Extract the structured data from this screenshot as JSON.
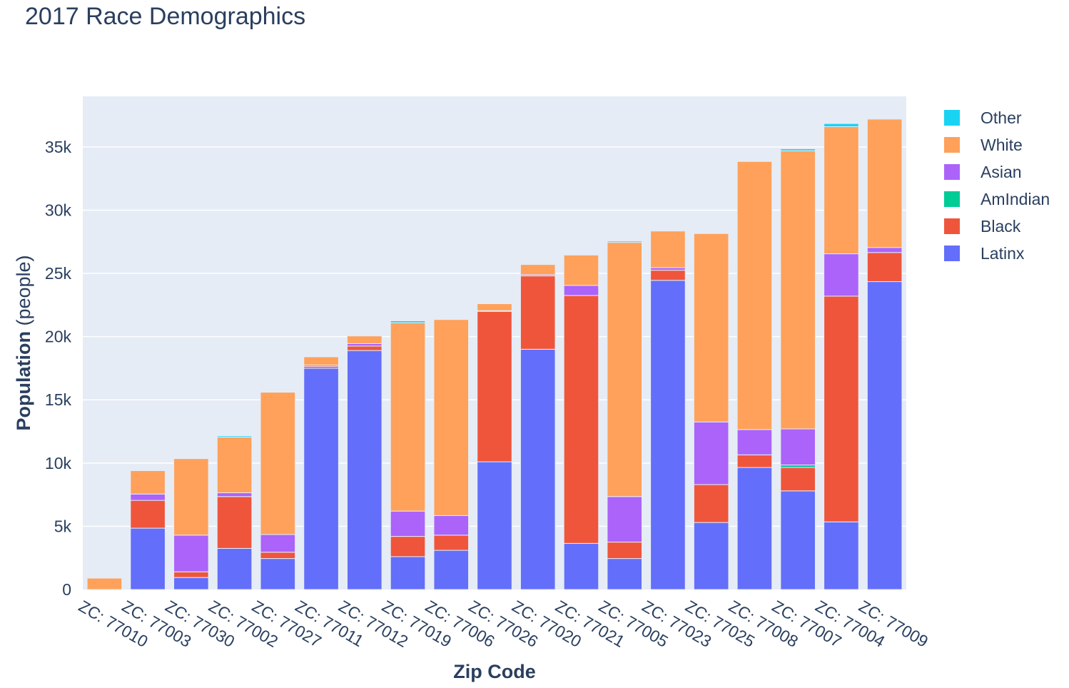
{
  "chart_data": {
    "type": "bar",
    "barmode": "stack",
    "title": "2017 Race Demographics",
    "xlabel": "Zip Code",
    "ylabel_bold": "Population",
    "ylabel_rest": " (people)",
    "ylim": [
      0,
      39000
    ],
    "yticks": [
      0,
      5000,
      10000,
      15000,
      20000,
      25000,
      30000,
      35000
    ],
    "ytick_labels": [
      "0",
      "5k",
      "10k",
      "15k",
      "20k",
      "25k",
      "30k",
      "35k"
    ],
    "grid": true,
    "legend_position": "right",
    "categories": [
      "ZC: 77010",
      "ZC: 77003",
      "ZC: 77030",
      "ZC: 77002",
      "ZC: 77027",
      "ZC: 77011",
      "ZC: 77012",
      "ZC: 77019",
      "ZC: 77006",
      "ZC: 77026",
      "ZC: 77020",
      "ZC: 77021",
      "ZC: 77005",
      "ZC: 77023",
      "ZC: 77025",
      "ZC: 77008",
      "ZC: 77007",
      "ZC: 77004",
      "ZC: 77009"
    ],
    "series": [
      {
        "name": "Latinx",
        "color": "#636efa",
        "values": [
          0,
          4850,
          950,
          3250,
          2450,
          17500,
          18900,
          2600,
          3100,
          10100,
          19000,
          3650,
          2450,
          24450,
          5300,
          9650,
          7800,
          5350,
          24350
        ]
      },
      {
        "name": "Black",
        "color": "#ef553b",
        "values": [
          0,
          2200,
          450,
          4100,
          500,
          150,
          350,
          1600,
          1200,
          11900,
          5800,
          19600,
          1300,
          800,
          3000,
          1000,
          1850,
          17850,
          2300
        ]
      },
      {
        "name": "AmIndian",
        "color": "#00cc96",
        "values": [
          0,
          0,
          0,
          0,
          0,
          0,
          0,
          0,
          0,
          0,
          0,
          0,
          0,
          0,
          0,
          0,
          200,
          0,
          0
        ]
      },
      {
        "name": "Asian",
        "color": "#ab63fa",
        "values": [
          0,
          500,
          2900,
          300,
          1400,
          100,
          200,
          2000,
          1550,
          50,
          100,
          800,
          3600,
          200,
          4950,
          2000,
          2850,
          3350,
          400
        ]
      },
      {
        "name": "White",
        "color": "#ffa15a",
        "values": [
          900,
          1850,
          6050,
          4400,
          11250,
          650,
          600,
          14900,
          15500,
          550,
          800,
          2400,
          20100,
          2900,
          14900,
          21200,
          22000,
          10050,
          10150
        ]
      },
      {
        "name": "Other",
        "color": "#19d3f3",
        "values": [
          0,
          0,
          0,
          100,
          0,
          0,
          0,
          150,
          0,
          0,
          0,
          0,
          100,
          0,
          0,
          0,
          150,
          250,
          0
        ]
      }
    ],
    "legend_order": [
      "Other",
      "White",
      "Asian",
      "AmIndian",
      "Black",
      "Latinx"
    ]
  }
}
